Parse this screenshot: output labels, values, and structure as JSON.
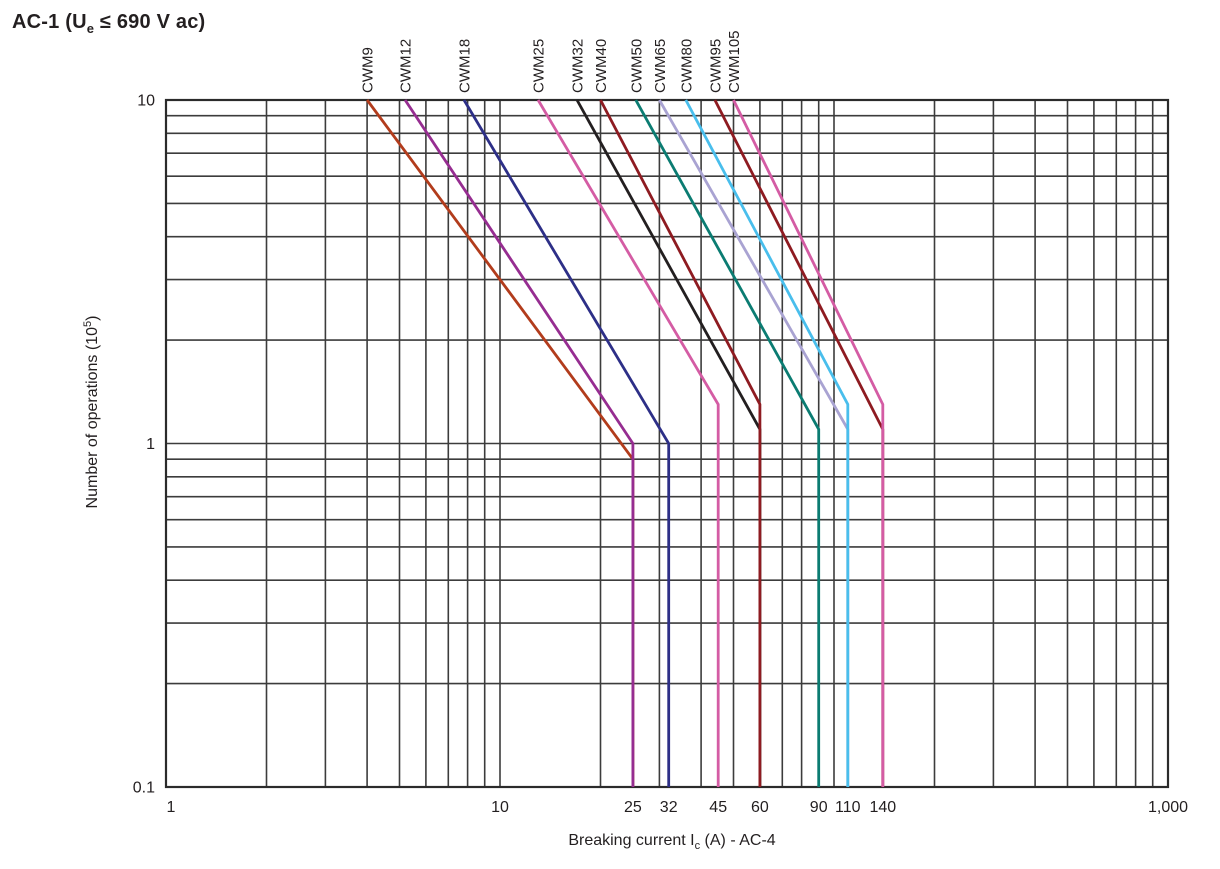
{
  "title": {
    "prefix": "AC-1 (U",
    "sub": "e",
    "suffix": " ≤ 690 V ac)",
    "full": "AC-1 (Ue ≤ 690 V ac)"
  },
  "chart_data": {
    "type": "line",
    "title": "AC-1 (Ue ≤ 690 V ac)",
    "xlabel": "Breaking current Ic (A) - AC-4",
    "xlabel_parts": {
      "prefix": "Breaking current I",
      "sub": "c",
      "suffix": " (A) - AC-4"
    },
    "ylabel": "Number of operations (10^5)",
    "ylabel_parts": {
      "prefix": "Number of operations (10",
      "sup": "5",
      "suffix": ")"
    },
    "x_scale": "log",
    "y_scale": "log",
    "xlim": [
      1,
      1000
    ],
    "ylim": [
      0.1,
      10
    ],
    "grid": "full minor log grid (1-9 per decade), dark gray",
    "grid_color": "#3c3c3c",
    "axis_color": "#2b2b2b",
    "text_color": "#231f20",
    "legend_position": "rotated model labels above top axis at each curve start",
    "x_tick_labels": [
      {
        "value": 1,
        "label": "1"
      },
      {
        "value": 10,
        "label": "10"
      },
      {
        "value": 25,
        "label": "25"
      },
      {
        "value": 32,
        "label": "32"
      },
      {
        "value": 45,
        "label": "45"
      },
      {
        "value": 60,
        "label": "60"
      },
      {
        "value": 90,
        "label": "90"
      },
      {
        "value": 110,
        "label": "110"
      },
      {
        "value": 140,
        "label": "140"
      },
      {
        "value": 1000,
        "label": "1,000"
      }
    ],
    "y_tick_labels": [
      {
        "value": 10,
        "label": "10"
      },
      {
        "value": 1,
        "label": "1"
      },
      {
        "value": 0.1,
        "label": "0.1"
      }
    ],
    "series_note": "points are [breaking current A, operations x10^5]; each curve: diagonal from top (10x10^5 ops) to knee, then vertical drop at rated breaking current",
    "series": [
      {
        "name": "CWM9",
        "color": "#b23c1c",
        "breaking_current_a": 25,
        "knee_operations": 0.9,
        "points": [
          [
            4.0,
            10
          ],
          [
            25,
            0.9
          ],
          [
            25,
            0.1
          ]
        ]
      },
      {
        "name": "CWM12",
        "color": "#962d91",
        "breaking_current_a": 25,
        "knee_operations": 1.0,
        "points": [
          [
            5.2,
            10
          ],
          [
            25,
            1.0
          ],
          [
            25,
            0.1
          ]
        ]
      },
      {
        "name": "CWM18",
        "color": "#2d2f87",
        "breaking_current_a": 32,
        "knee_operations": 1.0,
        "points": [
          [
            7.8,
            10
          ],
          [
            32,
            1.0
          ],
          [
            32,
            0.1
          ]
        ]
      },
      {
        "name": "CWM25",
        "color": "#d45ca4",
        "breaking_current_a": 45,
        "knee_operations": 1.3,
        "points": [
          [
            13,
            10
          ],
          [
            45,
            1.3
          ],
          [
            45,
            0.1
          ]
        ]
      },
      {
        "name": "CWM32",
        "color": "#231f20",
        "breaking_current_a": 60,
        "knee_operations": 1.1,
        "points": [
          [
            17,
            10
          ],
          [
            60,
            1.1
          ],
          [
            60,
            0.1
          ]
        ]
      },
      {
        "name": "CWM40",
        "color": "#8e1b21",
        "breaking_current_a": 60,
        "knee_operations": 1.3,
        "points": [
          [
            20,
            10
          ],
          [
            60,
            1.3
          ],
          [
            60,
            0.1
          ]
        ]
      },
      {
        "name": "CWM50",
        "color": "#0b7c72",
        "breaking_current_a": 90,
        "knee_operations": 1.1,
        "points": [
          [
            25.5,
            10
          ],
          [
            90,
            1.1
          ],
          [
            90,
            0.1
          ]
        ]
      },
      {
        "name": "CWM65",
        "color": "#a9a3d2",
        "breaking_current_a": 110,
        "knee_operations": 1.1,
        "points": [
          [
            30,
            10
          ],
          [
            110,
            1.1
          ],
          [
            110,
            0.1
          ]
        ]
      },
      {
        "name": "CWM80",
        "color": "#49beec",
        "breaking_current_a": 110,
        "knee_operations": 1.3,
        "points": [
          [
            36,
            10
          ],
          [
            110,
            1.3
          ],
          [
            110,
            0.1
          ]
        ]
      },
      {
        "name": "CWM95",
        "color": "#8e1b21",
        "breaking_current_a": 140,
        "knee_operations": 1.1,
        "points": [
          [
            44,
            10
          ],
          [
            140,
            1.1
          ],
          [
            140,
            0.1
          ]
        ]
      },
      {
        "name": "CWM105",
        "color": "#d45ca4",
        "breaking_current_a": 140,
        "knee_operations": 1.3,
        "points": [
          [
            50,
            10
          ],
          [
            140,
            1.3
          ],
          [
            140,
            0.1
          ]
        ]
      }
    ]
  }
}
